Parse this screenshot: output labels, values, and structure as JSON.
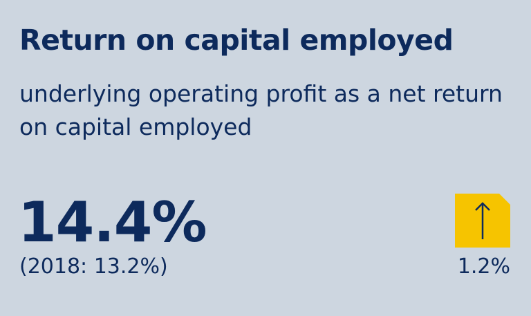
{
  "header": {
    "title": "Return on capital employed",
    "subtitle": "underlying operating profit as a net return on capital employed"
  },
  "kpi": {
    "value": "14.4%",
    "comparison": "(2018: 13.2%)",
    "change": "1.2%",
    "direction": "up"
  },
  "colors": {
    "background": "#cdd6e0",
    "text": "#0d2a5c",
    "badge": "#f6c400"
  },
  "icons": {
    "trend": "arrow-up-icon"
  }
}
